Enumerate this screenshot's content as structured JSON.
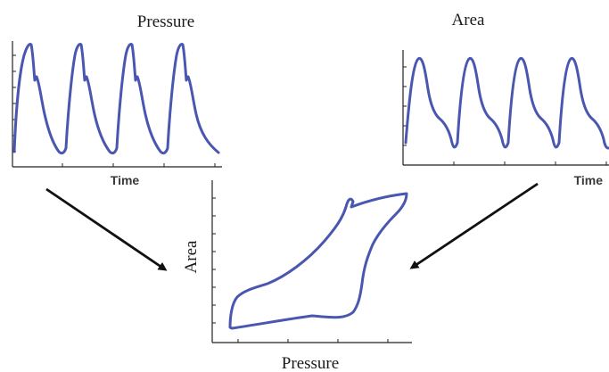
{
  "panels": {
    "pressure_time": {
      "title": "Pressure",
      "xlabel": "Time"
    },
    "area_time": {
      "title": "Area",
      "xlabel": "Time"
    },
    "loop": {
      "xlabel": "Pressure",
      "ylabel": "Area"
    }
  },
  "colors": {
    "curve": "#4a57b0",
    "axis": "#222222",
    "arrow": "#111111"
  }
}
